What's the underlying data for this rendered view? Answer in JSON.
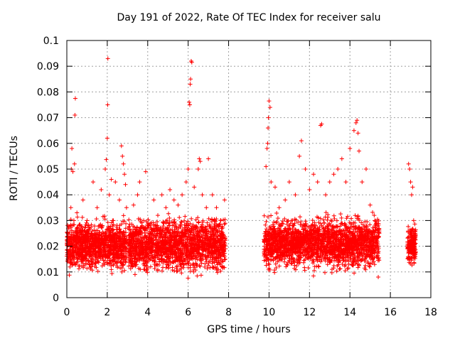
{
  "chart_data": {
    "type": "scatter",
    "title": "Day 191 of 2022, Rate Of TEC Index for receiver salu",
    "xlabel": "GPS time / hours",
    "ylabel": "ROTI / TECUs",
    "xlim": [
      0,
      18
    ],
    "ylim": [
      0,
      0.1
    ],
    "x_ticks": [
      0,
      2,
      4,
      6,
      8,
      10,
      12,
      14,
      16,
      18
    ],
    "x_tick_labels": [
      "0",
      "2",
      "4",
      "6",
      "8",
      "10",
      "12",
      "14",
      "16",
      "18"
    ],
    "y_ticks": [
      0,
      0.01,
      0.02,
      0.03,
      0.04,
      0.05,
      0.06,
      0.07,
      0.08,
      0.09,
      0.1
    ],
    "y_tick_labels": [
      "0",
      "0.01",
      "0.02",
      "0.03",
      "0.04",
      "0.05",
      "0.06",
      "0.07",
      "0.08",
      "0.09",
      "0.1"
    ],
    "grid": true,
    "marker": "+",
    "color": "#ff0000",
    "series": [
      {
        "name": "ROTI",
        "points": [
          [
            0.05,
            0.025
          ],
          [
            0.1,
            0.018
          ],
          [
            0.15,
            0.022
          ],
          [
            0.2,
            0.035
          ],
          [
            0.22,
            0.05
          ],
          [
            0.25,
            0.058
          ],
          [
            0.3,
            0.049
          ],
          [
            0.35,
            0.03
          ],
          [
            0.38,
            0.052
          ],
          [
            0.4,
            0.071
          ],
          [
            0.42,
            0.0775
          ],
          [
            0.45,
            0.026
          ],
          [
            0.5,
            0.033
          ],
          [
            0.55,
            0.015
          ],
          [
            0.6,
            0.028
          ],
          [
            0.7,
            0.02
          ],
          [
            0.8,
            0.038
          ],
          [
            0.9,
            0.022
          ],
          [
            1.0,
            0.03
          ],
          [
            1.1,
            0.018
          ],
          [
            1.2,
            0.025
          ],
          [
            1.3,
            0.045
          ],
          [
            1.4,
            0.02
          ],
          [
            1.5,
            0.035
          ],
          [
            1.6,
            0.028
          ],
          [
            1.7,
            0.042
          ],
          [
            1.8,
            0.025
          ],
          [
            1.9,
            0.05
          ],
          [
            1.95,
            0.0537
          ],
          [
            2.0,
            0.062
          ],
          [
            2.02,
            0.075
          ],
          [
            2.03,
            0.093
          ],
          [
            2.1,
            0.04
          ],
          [
            2.2,
            0.046
          ],
          [
            2.3,
            0.03
          ],
          [
            2.4,
            0.045
          ],
          [
            2.5,
            0.025
          ],
          [
            2.6,
            0.038
          ],
          [
            2.7,
            0.059
          ],
          [
            2.75,
            0.055
          ],
          [
            2.8,
            0.052
          ],
          [
            2.85,
            0.048
          ],
          [
            2.9,
            0.044
          ],
          [
            2.95,
            0.035
          ],
          [
            3.3,
            0.036
          ],
          [
            3.5,
            0.04
          ],
          [
            3.6,
            0.045
          ],
          [
            3.8,
            0.03
          ],
          [
            3.9,
            0.049
          ],
          [
            4.1,
            0.025
          ],
          [
            4.3,
            0.038
          ],
          [
            4.5,
            0.032
          ],
          [
            4.7,
            0.04
          ],
          [
            4.9,
            0.035
          ],
          [
            5.1,
            0.042
          ],
          [
            5.3,
            0.038
          ],
          [
            5.5,
            0.036
          ],
          [
            5.7,
            0.04
          ],
          [
            5.9,
            0.045
          ],
          [
            6.0,
            0.05
          ],
          [
            6.05,
            0.076
          ],
          [
            6.08,
            0.075
          ],
          [
            6.1,
            0.083
          ],
          [
            6.12,
            0.085
          ],
          [
            6.15,
            0.092
          ],
          [
            6.18,
            0.0915
          ],
          [
            6.3,
            0.043
          ],
          [
            6.5,
            0.05
          ],
          [
            6.55,
            0.054
          ],
          [
            6.6,
            0.053
          ],
          [
            6.7,
            0.04
          ],
          [
            6.9,
            0.035
          ],
          [
            7.0,
            0.054
          ],
          [
            7.2,
            0.04
          ],
          [
            7.4,
            0.035
          ],
          [
            7.6,
            0.03
          ],
          [
            7.8,
            0.038
          ],
          [
            9.85,
            0.051
          ],
          [
            9.9,
            0.058
          ],
          [
            9.93,
            0.06
          ],
          [
            9.95,
            0.066
          ],
          [
            9.97,
            0.07
          ],
          [
            10.0,
            0.0765
          ],
          [
            10.05,
            0.074
          ],
          [
            10.1,
            0.045
          ],
          [
            10.3,
            0.043
          ],
          [
            10.5,
            0.035
          ],
          [
            10.8,
            0.038
          ],
          [
            11.0,
            0.045
          ],
          [
            11.3,
            0.04
          ],
          [
            11.5,
            0.055
          ],
          [
            11.6,
            0.061
          ],
          [
            11.8,
            0.05
          ],
          [
            12.0,
            0.042
          ],
          [
            12.2,
            0.048
          ],
          [
            12.4,
            0.045
          ],
          [
            12.55,
            0.067
          ],
          [
            12.6,
            0.0675
          ],
          [
            12.8,
            0.04
          ],
          [
            13.0,
            0.045
          ],
          [
            13.2,
            0.048
          ],
          [
            13.4,
            0.05
          ],
          [
            13.6,
            0.054
          ],
          [
            13.8,
            0.045
          ],
          [
            14.0,
            0.058
          ],
          [
            14.2,
            0.065
          ],
          [
            14.3,
            0.068
          ],
          [
            14.35,
            0.069
          ],
          [
            14.4,
            0.064
          ],
          [
            14.45,
            0.057
          ],
          [
            14.6,
            0.045
          ],
          [
            14.8,
            0.05
          ],
          [
            15.0,
            0.036
          ],
          [
            15.2,
            0.032
          ],
          [
            15.4,
            0.008
          ],
          [
            16.9,
            0.052
          ],
          [
            16.95,
            0.05
          ],
          [
            17.0,
            0.045
          ],
          [
            17.05,
            0.04
          ],
          [
            17.1,
            0.043
          ],
          [
            17.15,
            0.03
          ],
          [
            17.2,
            0.025
          ]
        ],
        "bands": [
          {
            "x": [
              0.0,
              2.95
            ],
            "y": [
              0.008,
              0.033
            ],
            "count": 1100
          },
          {
            "x": [
              3.05,
              7.85
            ],
            "y": [
              0.007,
              0.034
            ],
            "count": 1700
          },
          {
            "x": [
              9.75,
              15.45
            ],
            "y": [
              0.008,
              0.034
            ],
            "count": 2000
          },
          {
            "x": [
              16.85,
              17.25
            ],
            "y": [
              0.01,
              0.03
            ],
            "count": 200
          }
        ]
      }
    ]
  }
}
